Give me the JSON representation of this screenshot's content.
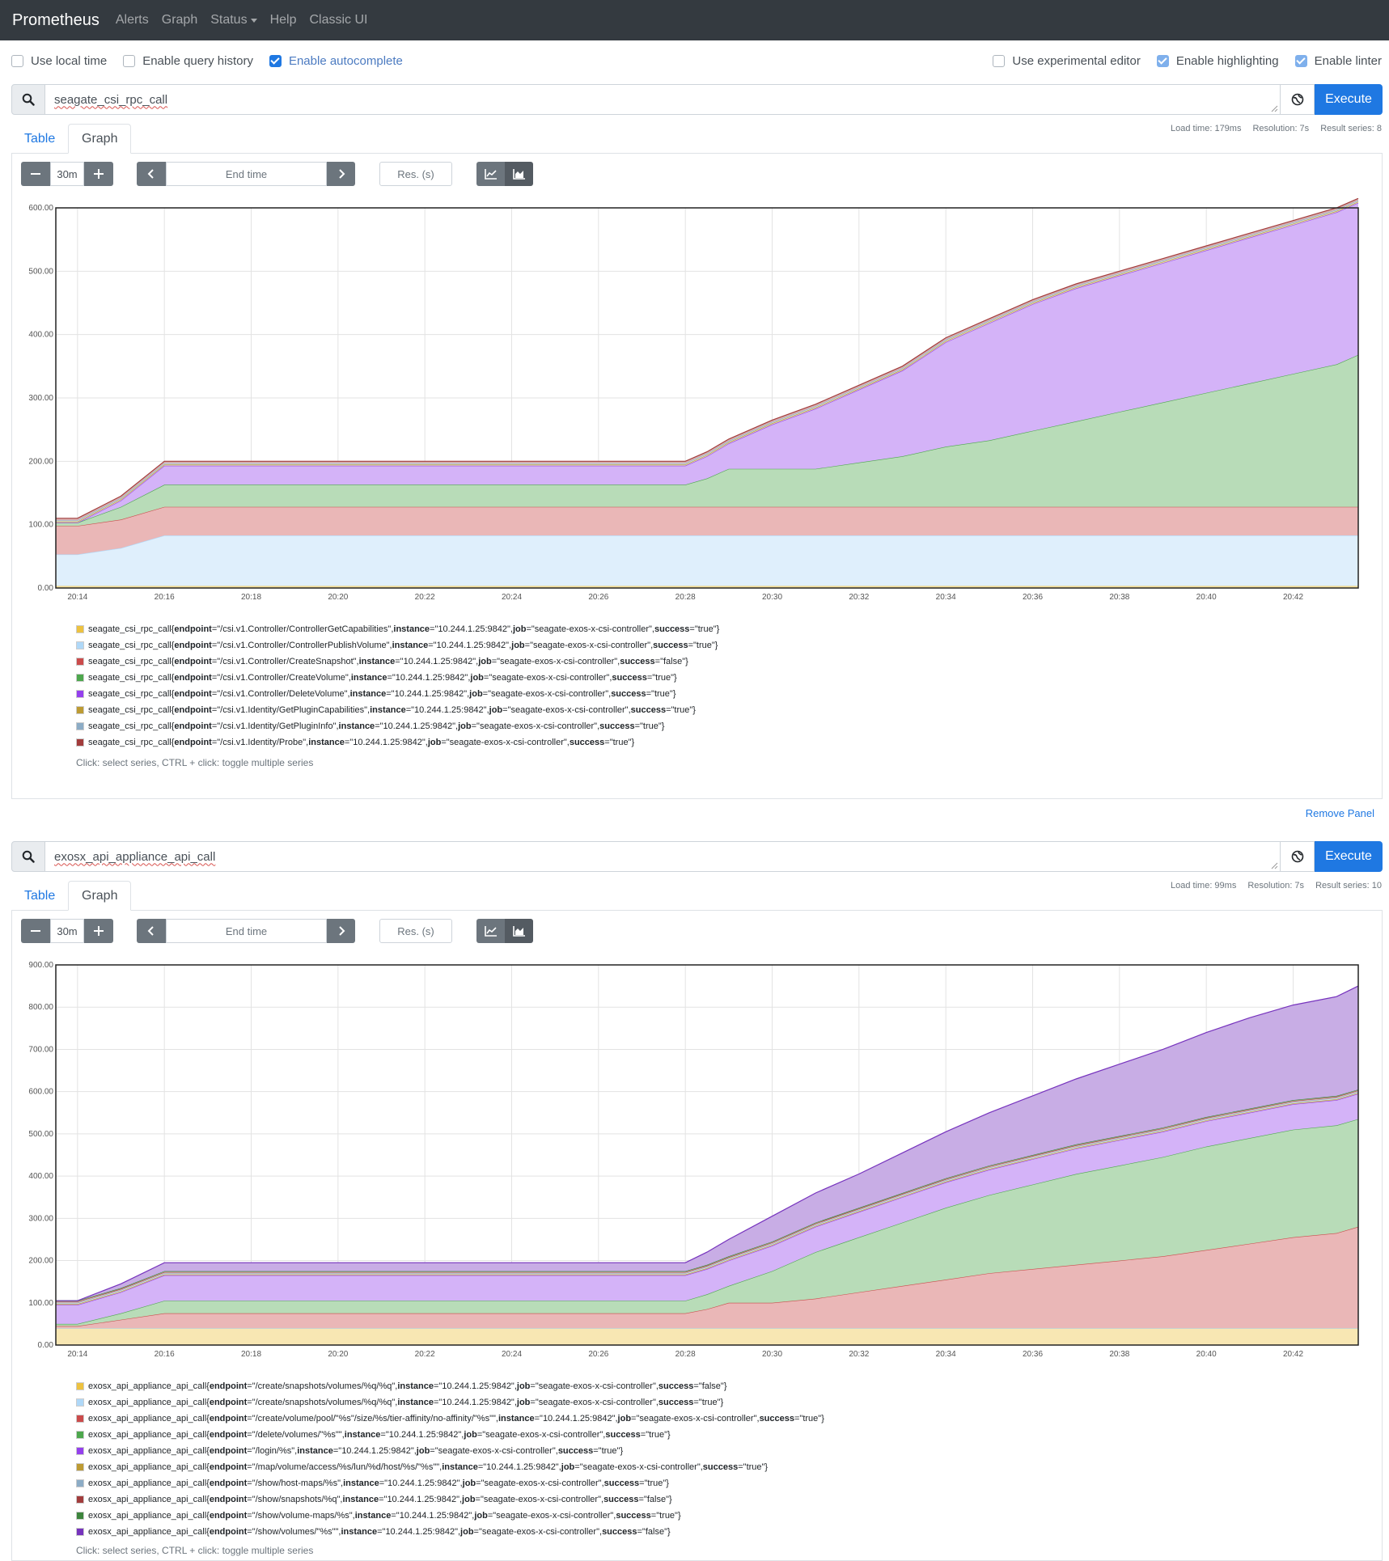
{
  "navbar": {
    "brand": "Prometheus",
    "links": [
      "Alerts",
      "Graph",
      "Status",
      "Help",
      "Classic UI"
    ]
  },
  "options": {
    "left": [
      {
        "label": "Use local time",
        "checked": false
      },
      {
        "label": "Enable query history",
        "checked": false
      },
      {
        "label": "Enable autocomplete",
        "checked": true
      }
    ],
    "right": [
      {
        "label": "Use experimental editor",
        "checked": false
      },
      {
        "label": "Enable highlighting",
        "checked": true
      },
      {
        "label": "Enable linter",
        "checked": true
      }
    ]
  },
  "common": {
    "execute": "Execute",
    "tab_table": "Table",
    "tab_graph": "Graph",
    "range": "30m",
    "end_time_placeholder": "End time",
    "res_placeholder": "Res. (s)",
    "hint": "Click: select series, CTRL + click: toggle multiple series",
    "remove_panel": "Remove Panel"
  },
  "colors": {
    "accent": "#1f78e2",
    "navbar": "#343a40"
  },
  "panels": [
    {
      "query": "seagate_csi_rpc_call",
      "stats": {
        "load_time": "Load time: 179ms",
        "resolution": "Resolution: 7s",
        "result_series": "Result series: 8"
      },
      "legend": [
        {
          "metric": "seagate_csi_rpc_call",
          "endpoint": "/csi.v1.Controller/ControllerGetCapabilities",
          "instance": "10.244.1.25:9842",
          "job": "seagate-exos-x-csi-controller",
          "success": "true",
          "color": "#edc240"
        },
        {
          "metric": "seagate_csi_rpc_call",
          "endpoint": "/csi.v1.Controller/ControllerPublishVolume",
          "instance": "10.244.1.25:9842",
          "job": "seagate-exos-x-csi-controller",
          "success": "true",
          "color": "#afd8f8"
        },
        {
          "metric": "seagate_csi_rpc_call",
          "endpoint": "/csi.v1.Controller/CreateSnapshot",
          "instance": "10.244.1.25:9842",
          "job": "seagate-exos-x-csi-controller",
          "success": "false",
          "color": "#cb4b4b"
        },
        {
          "metric": "seagate_csi_rpc_call",
          "endpoint": "/csi.v1.Controller/CreateVolume",
          "instance": "10.244.1.25:9842",
          "job": "seagate-exos-x-csi-controller",
          "success": "true",
          "color": "#4da74d"
        },
        {
          "metric": "seagate_csi_rpc_call",
          "endpoint": "/csi.v1.Controller/DeleteVolume",
          "instance": "10.244.1.25:9842",
          "job": "seagate-exos-x-csi-controller",
          "success": "true",
          "color": "#9440ed"
        },
        {
          "metric": "seagate_csi_rpc_call",
          "endpoint": "/csi.v1.Identity/GetPluginCapabilities",
          "instance": "10.244.1.25:9842",
          "job": "seagate-exos-x-csi-controller",
          "success": "true",
          "color": "#bd9b33"
        },
        {
          "metric": "seagate_csi_rpc_call",
          "endpoint": "/csi.v1.Identity/GetPluginInfo",
          "instance": "10.244.1.25:9842",
          "job": "seagate-exos-x-csi-controller",
          "success": "true",
          "color": "#8cacc6"
        },
        {
          "metric": "seagate_csi_rpc_call",
          "endpoint": "/csi.v1.Identity/Probe",
          "instance": "10.244.1.25:9842",
          "job": "seagate-exos-x-csi-controller",
          "success": "true",
          "color": "#a23c3c"
        }
      ]
    },
    {
      "query": "exosx_api_appliance_api_call",
      "stats": {
        "load_time": "Load time: 99ms",
        "resolution": "Resolution: 7s",
        "result_series": "Result series: 10"
      },
      "legend": [
        {
          "metric": "exosx_api_appliance_api_call",
          "endpoint": "/create/snapshots/volumes/%q/%q",
          "instance": "10.244.1.25:9842",
          "job": "seagate-exos-x-csi-controller",
          "success": "false",
          "color": "#edc240"
        },
        {
          "metric": "exosx_api_appliance_api_call",
          "endpoint": "/create/snapshots/volumes/%q/%q",
          "instance": "10.244.1.25:9842",
          "job": "seagate-exos-x-csi-controller",
          "success": "true",
          "color": "#afd8f8"
        },
        {
          "metric": "exosx_api_appliance_api_call",
          "endpoint": "/create/volume/pool/\"%s\"/size/%s/tier-affinity/no-affinity/\"%s\"",
          "instance": "10.244.1.25:9842",
          "job": "seagate-exos-x-csi-controller",
          "success": "true",
          "color": "#cb4b4b"
        },
        {
          "metric": "exosx_api_appliance_api_call",
          "endpoint": "/delete/volumes/\"%s\"",
          "instance": "10.244.1.25:9842",
          "job": "seagate-exos-x-csi-controller",
          "success": "true",
          "color": "#4da74d"
        },
        {
          "metric": "exosx_api_appliance_api_call",
          "endpoint": "/login/%s",
          "instance": "10.244.1.25:9842",
          "job": "seagate-exos-x-csi-controller",
          "success": "true",
          "color": "#9440ed"
        },
        {
          "metric": "exosx_api_appliance_api_call",
          "endpoint": "/map/volume/access/%s/lun/%d/host/%s/\"%s\"",
          "instance": "10.244.1.25:9842",
          "job": "seagate-exos-x-csi-controller",
          "success": "true",
          "color": "#bd9b33"
        },
        {
          "metric": "exosx_api_appliance_api_call",
          "endpoint": "/show/host-maps/%s",
          "instance": "10.244.1.25:9842",
          "job": "seagate-exos-x-csi-controller",
          "success": "true",
          "color": "#8cacc6"
        },
        {
          "metric": "exosx_api_appliance_api_call",
          "endpoint": "/show/snapshots/%q",
          "instance": "10.244.1.25:9842",
          "job": "seagate-exos-x-csi-controller",
          "success": "false",
          "color": "#a23c3c"
        },
        {
          "metric": "exosx_api_appliance_api_call",
          "endpoint": "/show/volume-maps/%s",
          "instance": "10.244.1.25:9842",
          "job": "seagate-exos-x-csi-controller",
          "success": "true",
          "color": "#3d853d"
        },
        {
          "metric": "exosx_api_appliance_api_call",
          "endpoint": "/show/volumes/\"%s\"",
          "instance": "10.244.1.25:9842",
          "job": "seagate-exos-x-csi-controller",
          "success": "false",
          "color": "#7633bd"
        }
      ]
    }
  ],
  "chart_data": [
    {
      "type": "area",
      "stacked": true,
      "x": [
        "20:13:30",
        "20:14",
        "20:15",
        "20:16",
        "20:17",
        "20:18",
        "20:20",
        "20:22",
        "20:24",
        "20:26",
        "20:28",
        "20:28:30",
        "20:29",
        "20:30",
        "20:31",
        "20:32",
        "20:33",
        "20:34",
        "20:35",
        "20:36",
        "20:37",
        "20:38",
        "20:39",
        "20:40",
        "20:41",
        "20:42",
        "20:43",
        "20:43:30"
      ],
      "xticks": [
        "20:14",
        "20:16",
        "20:18",
        "20:20",
        "20:22",
        "20:24",
        "20:26",
        "20:28",
        "20:30",
        "20:32",
        "20:34",
        "20:36",
        "20:38",
        "20:40",
        "20:42"
      ],
      "ylim": [
        0,
        600
      ],
      "yticks": [
        "0.00",
        "100.00",
        "200.00",
        "300.00",
        "400.00",
        "500.00",
        "600.00"
      ],
      "grid": true,
      "series": [
        {
          "color": "#edc240",
          "values": [
            3,
            3,
            3,
            3,
            3,
            3,
            3,
            3,
            3,
            3,
            3,
            3,
            3,
            3,
            3,
            3,
            3,
            3,
            3,
            3,
            3,
            3,
            3,
            3,
            3,
            3,
            3,
            3
          ]
        },
        {
          "color": "#afd8f8",
          "values": [
            50,
            50,
            60,
            80,
            80,
            80,
            80,
            80,
            80,
            80,
            80,
            80,
            80,
            80,
            80,
            80,
            80,
            80,
            80,
            80,
            80,
            80,
            80,
            80,
            80,
            80,
            80,
            80
          ]
        },
        {
          "color": "#cb4b4b",
          "values": [
            45,
            45,
            45,
            45,
            45,
            45,
            45,
            45,
            45,
            45,
            45,
            45,
            45,
            45,
            45,
            45,
            45,
            45,
            45,
            45,
            45,
            45,
            45,
            45,
            45,
            45,
            45,
            45
          ]
        },
        {
          "color": "#4da74d",
          "values": [
            5,
            5,
            20,
            35,
            35,
            35,
            35,
            35,
            35,
            35,
            35,
            45,
            60,
            60,
            60,
            70,
            80,
            95,
            105,
            120,
            135,
            150,
            165,
            180,
            195,
            210,
            225,
            240
          ]
        },
        {
          "color": "#9440ed",
          "values": [
            0,
            0,
            10,
            30,
            30,
            30,
            30,
            30,
            30,
            30,
            30,
            35,
            40,
            70,
            95,
            115,
            135,
            165,
            185,
            200,
            210,
            215,
            220,
            225,
            230,
            235,
            240,
            240
          ]
        },
        {
          "color": "#bd9b33",
          "values": [
            2,
            2,
            2,
            2,
            2,
            2,
            2,
            2,
            2,
            2,
            2,
            2,
            2,
            2,
            2,
            2,
            2,
            2,
            2,
            2,
            2,
            2,
            2,
            2,
            2,
            2,
            2,
            2
          ]
        },
        {
          "color": "#8cacc6",
          "values": [
            2,
            2,
            2,
            2,
            2,
            2,
            2,
            2,
            2,
            2,
            2,
            2,
            2,
            2,
            2,
            2,
            2,
            2,
            2,
            2,
            2,
            2,
            2,
            2,
            2,
            2,
            2,
            2
          ]
        },
        {
          "color": "#a23c3c",
          "values": [
            3,
            3,
            3,
            3,
            3,
            3,
            3,
            3,
            3,
            3,
            3,
            3,
            3,
            3,
            3,
            3,
            3,
            3,
            3,
            3,
            3,
            3,
            3,
            3,
            3,
            3,
            3,
            3
          ]
        }
      ]
    },
    {
      "type": "area",
      "stacked": true,
      "x": [
        "20:13:30",
        "20:14",
        "20:15",
        "20:16",
        "20:17",
        "20:18",
        "20:20",
        "20:22",
        "20:24",
        "20:26",
        "20:28",
        "20:28:30",
        "20:29",
        "20:30",
        "20:31",
        "20:32",
        "20:33",
        "20:34",
        "20:35",
        "20:36",
        "20:37",
        "20:38",
        "20:39",
        "20:40",
        "20:41",
        "20:42",
        "20:43",
        "20:43:30"
      ],
      "xticks": [
        "20:14",
        "20:16",
        "20:18",
        "20:20",
        "20:22",
        "20:24",
        "20:26",
        "20:28",
        "20:30",
        "20:32",
        "20:34",
        "20:36",
        "20:38",
        "20:40",
        "20:42"
      ],
      "ylim": [
        0,
        900
      ],
      "yticks": [
        "0.00",
        "100.00",
        "200.00",
        "300.00",
        "400.00",
        "500.00",
        "600.00",
        "700.00",
        "800.00",
        "900.00"
      ],
      "grid": true,
      "series": [
        {
          "color": "#edc240",
          "values": [
            40,
            40,
            40,
            40,
            40,
            40,
            40,
            40,
            40,
            40,
            40,
            40,
            40,
            40,
            40,
            40,
            40,
            40,
            40,
            40,
            40,
            40,
            40,
            40,
            40,
            40,
            40,
            40
          ]
        },
        {
          "color": "#afd8f8",
          "values": [
            0,
            0,
            0,
            0,
            0,
            0,
            0,
            0,
            0,
            0,
            0,
            0,
            0,
            0,
            0,
            0,
            0,
            0,
            0,
            0,
            0,
            0,
            0,
            0,
            0,
            0,
            0,
            0
          ]
        },
        {
          "color": "#cb4b4b",
          "values": [
            5,
            5,
            20,
            35,
            35,
            35,
            35,
            35,
            35,
            35,
            35,
            45,
            60,
            60,
            70,
            85,
            100,
            115,
            130,
            140,
            150,
            160,
            170,
            185,
            200,
            215,
            225,
            240
          ]
        },
        {
          "color": "#4da74d",
          "values": [
            5,
            5,
            15,
            30,
            30,
            30,
            30,
            30,
            30,
            30,
            30,
            35,
            40,
            75,
            110,
            130,
            150,
            170,
            185,
            200,
            215,
            225,
            235,
            245,
            250,
            255,
            255,
            255
          ]
        },
        {
          "color": "#9440ed",
          "values": [
            45,
            45,
            50,
            60,
            60,
            60,
            60,
            60,
            60,
            60,
            60,
            60,
            60,
            60,
            60,
            60,
            60,
            60,
            60,
            60,
            60,
            60,
            60,
            60,
            60,
            60,
            60,
            60
          ]
        },
        {
          "color": "#bd9b33",
          "values": [
            2,
            2,
            2,
            2,
            2,
            2,
            2,
            2,
            2,
            2,
            2,
            2,
            2,
            2,
            2,
            2,
            2,
            2,
            2,
            2,
            2,
            2,
            2,
            2,
            2,
            2,
            2,
            2
          ]
        },
        {
          "color": "#8cacc6",
          "values": [
            3,
            3,
            3,
            3,
            3,
            3,
            3,
            3,
            3,
            3,
            3,
            3,
            3,
            3,
            3,
            3,
            3,
            3,
            3,
            3,
            3,
            3,
            3,
            3,
            3,
            3,
            3,
            3
          ]
        },
        {
          "color": "#a23c3c",
          "values": [
            3,
            3,
            3,
            3,
            3,
            3,
            3,
            3,
            3,
            3,
            3,
            3,
            3,
            3,
            3,
            3,
            3,
            3,
            3,
            3,
            3,
            3,
            3,
            3,
            3,
            3,
            3,
            3
          ]
        },
        {
          "color": "#3d853d",
          "values": [
            2,
            2,
            2,
            2,
            2,
            2,
            2,
            2,
            2,
            2,
            2,
            2,
            2,
            2,
            2,
            2,
            2,
            2,
            2,
            2,
            2,
            2,
            2,
            2,
            2,
            2,
            2,
            2
          ]
        },
        {
          "color": "#7633bd",
          "values": [
            0,
            0,
            10,
            20,
            20,
            20,
            20,
            20,
            20,
            20,
            20,
            30,
            40,
            60,
            70,
            80,
            95,
            110,
            125,
            140,
            155,
            170,
            185,
            200,
            215,
            225,
            235,
            245
          ]
        }
      ]
    }
  ]
}
